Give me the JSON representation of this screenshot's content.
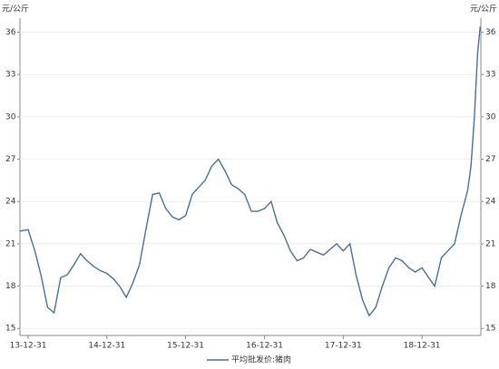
{
  "chart_data": {
    "type": "line",
    "y_label": "元/公斤",
    "y2_label": "元/公斤",
    "x": [
      "13-11-23",
      "13-12-31",
      "14-01-31",
      "14-02-28",
      "14-03-31",
      "14-04-30",
      "14-05-31",
      "14-06-30",
      "14-07-31",
      "14-08-31",
      "14-09-30",
      "14-10-31",
      "14-11-30",
      "14-12-31",
      "15-01-31",
      "15-02-28",
      "15-03-31",
      "15-04-30",
      "15-05-31",
      "15-06-30",
      "15-07-31",
      "15-08-31",
      "15-09-30",
      "15-10-31",
      "15-11-30",
      "15-12-31",
      "16-01-31",
      "16-02-29",
      "16-03-31",
      "16-04-30",
      "16-05-31",
      "16-06-30",
      "16-07-31",
      "16-08-31",
      "16-09-30",
      "16-10-31",
      "16-11-30",
      "16-12-31",
      "17-01-31",
      "17-02-28",
      "17-03-31",
      "17-04-30",
      "17-05-31",
      "17-06-30",
      "17-07-31",
      "17-08-31",
      "17-09-30",
      "17-10-31",
      "17-11-30",
      "17-12-31",
      "18-01-31",
      "18-02-28",
      "18-03-31",
      "18-04-30",
      "18-05-31",
      "18-06-30",
      "18-07-31",
      "18-08-31",
      "18-09-30",
      "18-10-31",
      "18-11-30",
      "18-12-31",
      "19-01-31",
      "19-02-28",
      "19-03-31",
      "19-04-30",
      "19-05-31",
      "19-06-30",
      "19-07-31",
      "19-08-15",
      "19-08-31",
      "19-09-15",
      "19-09-27"
    ],
    "series": [
      {
        "name": "平均批发价:猪肉",
        "color": "#4a6f96",
        "values": [
          21.9,
          22.0,
          20.5,
          18.8,
          16.5,
          16.1,
          18.6,
          18.8,
          19.5,
          20.3,
          19.8,
          19.4,
          19.1,
          18.9,
          18.5,
          18.0,
          17.2,
          18.2,
          19.5,
          22.0,
          24.5,
          24.6,
          23.5,
          22.9,
          22.7,
          23.0,
          24.5,
          25.0,
          25.5,
          26.5,
          27.0,
          26.2,
          25.2,
          24.9,
          24.5,
          23.3,
          23.3,
          23.5,
          24.0,
          22.5,
          21.6,
          20.5,
          19.8,
          20.0,
          20.6,
          20.4,
          20.2,
          20.6,
          21.0,
          20.5,
          21.0,
          18.8,
          17.0,
          15.9,
          16.5,
          18.0,
          19.3,
          20.0,
          19.8,
          19.3,
          19.0,
          19.3,
          18.6,
          18.0,
          20.0,
          20.5,
          21.0,
          23.0,
          24.8,
          26.5,
          30.0,
          34.5,
          36.4
        ]
      }
    ],
    "xlim": [
      "13-11-23",
      "19-09-30"
    ],
    "xticks": [
      "13-12-31",
      "14-12-31",
      "15-12-31",
      "16-12-31",
      "17-12-31",
      "18-12-31"
    ],
    "ylim": [
      14.5,
      37
    ],
    "yticks": [
      15,
      18,
      21,
      24,
      27,
      30,
      33,
      36
    ],
    "grid": true
  }
}
